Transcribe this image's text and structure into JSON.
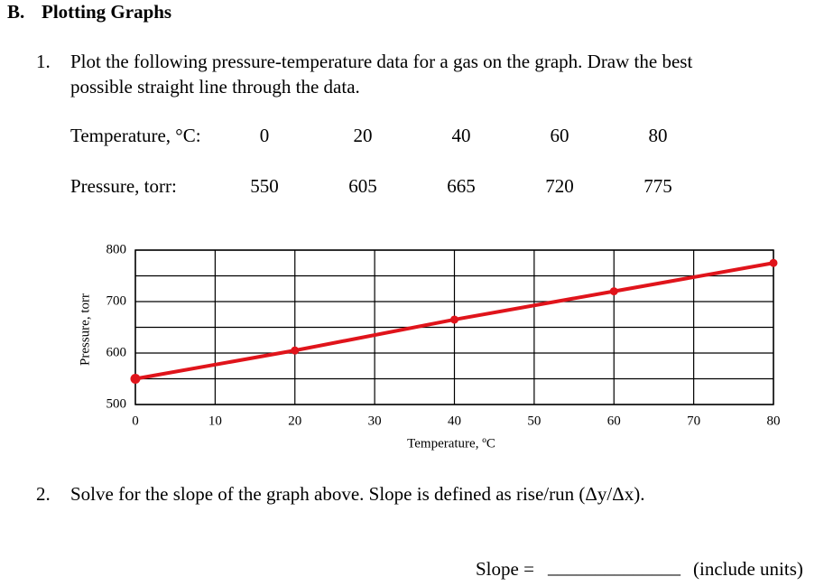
{
  "header": {
    "section": "B.",
    "title": "Plotting Graphs"
  },
  "question1": {
    "number": "1.",
    "lines": [
      "Plot the following pressure-temperature data for a gas on the graph. Draw the best",
      "possible straight line through the data."
    ]
  },
  "table": {
    "row_labels": [
      "Temperature, °C:",
      "Pressure, torr:"
    ]
  },
  "chart_data": {
    "type": "line",
    "x": [
      0,
      20,
      40,
      60,
      80
    ],
    "values": [
      550,
      605,
      665,
      720,
      775
    ],
    "color": "#e0141b",
    "xlabel": "Temperature, ºC",
    "ylabel": "Pressure, torr",
    "xlim": [
      0,
      80
    ],
    "xticks": [
      0,
      10,
      20,
      30,
      40,
      50,
      60,
      70,
      80
    ],
    "ylim": [
      500,
      800
    ],
    "yticks": [
      500,
      600,
      700,
      800
    ],
    "minor_yticks": [
      550,
      650,
      750
    ],
    "grid": true
  },
  "question2": {
    "number": "2.",
    "text": "Solve for the slope of the graph above. Slope is defined as rise/run (Δy/Δx).",
    "slope_label": "Slope =",
    "blank": "______________",
    "note": "(include units)"
  }
}
